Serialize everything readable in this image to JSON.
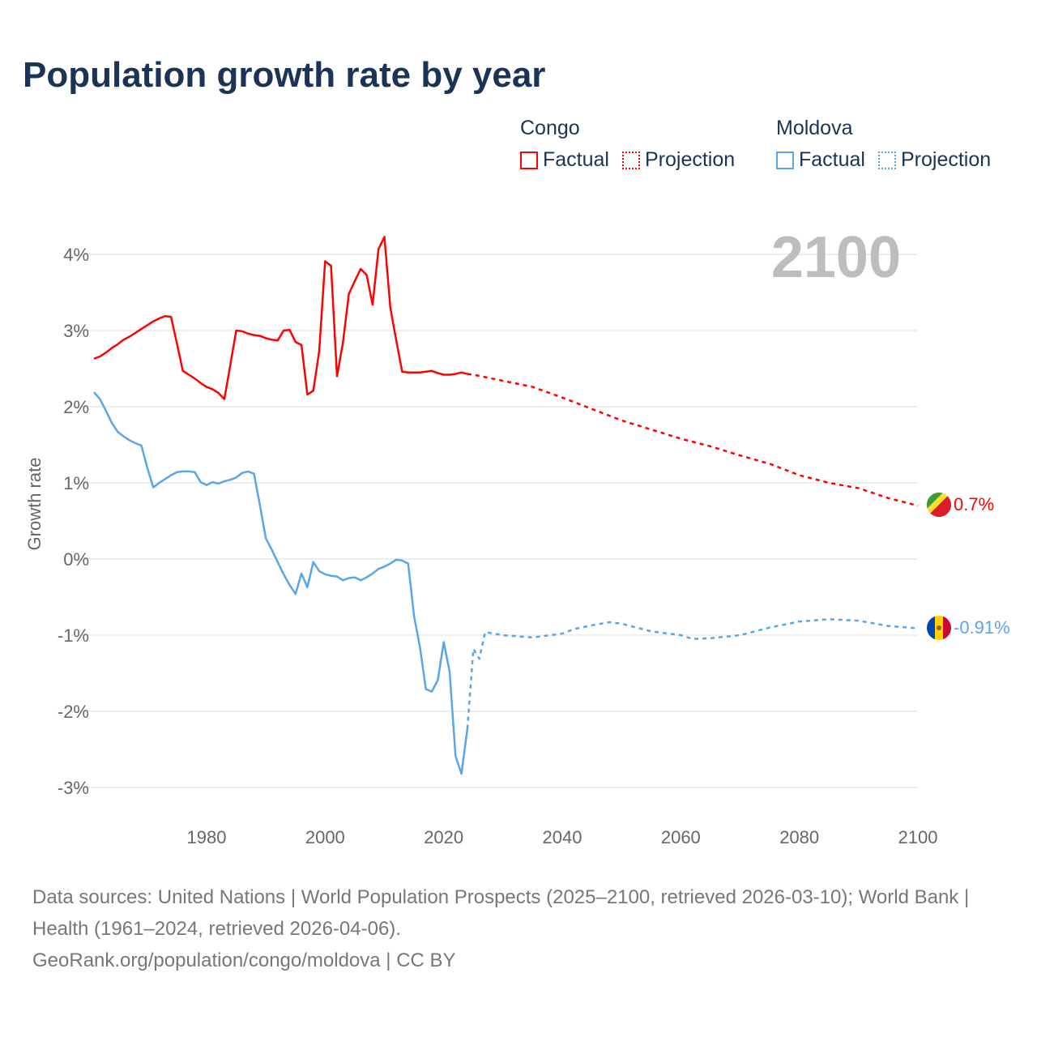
{
  "title": "Population growth rate by year",
  "legend": {
    "groups": [
      {
        "name": "Congo",
        "color": "#ff0000",
        "items": [
          "Factual",
          "Projection"
        ]
      },
      {
        "name": "Moldova",
        "color": "#5aa5ea",
        "items": [
          "Factual",
          "Projection"
        ]
      }
    ]
  },
  "year_display": "2100",
  "end_labels": {
    "congo": "0.7%",
    "moldova": "-0.91%"
  },
  "footer": {
    "sources": "Data sources: United Nations | World Population Prospects (2025–2100, retrieved 2026-03-10); World Bank | Health (1961–2024, retrieved 2026-04-06).",
    "link": "GeoRank.org/population/congo/moldova | CC BY"
  },
  "chart_data": {
    "type": "line",
    "title": "Population growth rate by year",
    "xlabel": "",
    "ylabel": "Growth rate",
    "xlim": [
      1961,
      2100
    ],
    "ylim": [
      -3.2,
      4.3
    ],
    "xticks": [
      1980,
      2000,
      2020,
      2040,
      2060,
      2080,
      2100
    ],
    "yticks": [
      -3,
      -2,
      -1,
      0,
      1,
      2,
      3,
      4
    ],
    "ytick_labels": [
      "-3%",
      "-2%",
      "-1%",
      "0%",
      "1%",
      "2%",
      "3%",
      "4%"
    ],
    "grid": true,
    "legend_position": "top-right",
    "series": [
      {
        "name": "Congo Factual",
        "color": "#ff0000",
        "dash": false,
        "start": 1961,
        "values": [
          2.63,
          2.66,
          2.71,
          2.77,
          2.82,
          2.88,
          2.92,
          2.97,
          3.02,
          3.07,
          3.12,
          3.16,
          3.19,
          3.18,
          2.83,
          2.47,
          2.42,
          2.37,
          2.31,
          2.26,
          2.23,
          2.18,
          2.1,
          2.55,
          3.0,
          2.99,
          2.96,
          2.94,
          2.93,
          2.9,
          2.88,
          2.87,
          3.0,
          3.01,
          2.85,
          2.81,
          2.16,
          2.21,
          2.73,
          3.91,
          3.85,
          2.4,
          2.84,
          3.48,
          3.65,
          3.81,
          3.73,
          3.34,
          4.07,
          4.23,
          3.3,
          2.87,
          2.46,
          2.45,
          2.45,
          2.45,
          2.46,
          2.47,
          2.44,
          2.42,
          2.42,
          2.43,
          2.45,
          2.43
        ]
      },
      {
        "name": "Congo Projection",
        "color": "#ff0000",
        "dash": true,
        "x": [
          2024,
          2025,
          2030,
          2035,
          2040,
          2045,
          2050,
          2055,
          2060,
          2065,
          2070,
          2075,
          2080,
          2085,
          2090,
          2095,
          2100
        ],
        "values": [
          2.43,
          2.42,
          2.34,
          2.26,
          2.12,
          1.97,
          1.82,
          1.7,
          1.58,
          1.48,
          1.36,
          1.25,
          1.1,
          1.0,
          0.93,
          0.8,
          0.7
        ]
      },
      {
        "name": "Moldova Factual",
        "color": "#5aa5ea",
        "dash": false,
        "start": 1961,
        "values": [
          2.19,
          2.1,
          1.95,
          1.79,
          1.67,
          1.61,
          1.56,
          1.52,
          1.49,
          1.2,
          0.94,
          1.0,
          1.05,
          1.1,
          1.14,
          1.15,
          1.15,
          1.14,
          1.01,
          0.97,
          1.01,
          0.99,
          1.02,
          1.04,
          1.07,
          1.13,
          1.15,
          1.12,
          0.7,
          0.27,
          0.12,
          -0.04,
          -0.2,
          -0.34,
          -0.46,
          -0.19,
          -0.37,
          -0.04,
          -0.16,
          -0.2,
          -0.22,
          -0.23,
          -0.28,
          -0.25,
          -0.24,
          -0.28,
          -0.24,
          -0.19,
          -0.13,
          -0.1,
          -0.06,
          -0.01,
          -0.02,
          -0.06,
          -0.75,
          -1.16,
          -1.71,
          -1.74,
          -1.59,
          -1.09,
          -1.48,
          -2.59,
          -2.82,
          -2.23
        ]
      },
      {
        "name": "Moldova Projection",
        "color": "#5aa5ea",
        "dash": true,
        "x": [
          2024,
          2025,
          2026,
          2027,
          2030,
          2035,
          2040,
          2042,
          2045,
          2048,
          2050,
          2055,
          2060,
          2062,
          2065,
          2070,
          2075,
          2080,
          2085,
          2090,
          2095,
          2100
        ],
        "values": [
          -2.23,
          -1.18,
          -1.31,
          -0.96,
          -1.0,
          -1.03,
          -0.98,
          -0.92,
          -0.87,
          -0.83,
          -0.85,
          -0.95,
          -1.0,
          -1.05,
          -1.04,
          -1.0,
          -0.9,
          -0.82,
          -0.79,
          -0.81,
          -0.88,
          -0.91
        ]
      }
    ]
  }
}
